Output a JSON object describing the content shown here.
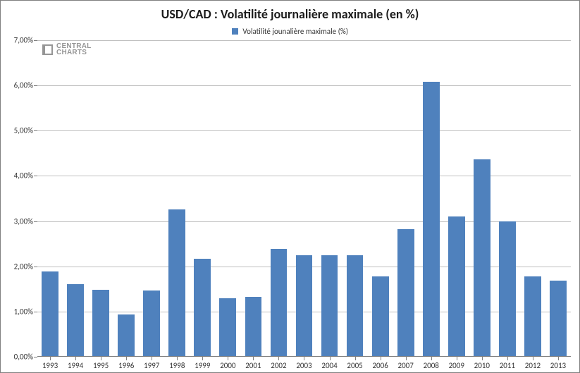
{
  "chart": {
    "type": "bar",
    "title": "USD/CAD : Volatilité journalière maximale (en %)",
    "title_fontsize": 18,
    "title_fontweight": "bold",
    "title_color": "#1a1a1a",
    "legend": {
      "label": "Volatilité jounalière maximale (%)",
      "swatch_color": "#4f81bd",
      "fontsize": 11
    },
    "categories": [
      "1993",
      "1994",
      "1995",
      "1996",
      "1997",
      "1998",
      "1999",
      "2000",
      "2001",
      "2002",
      "2003",
      "2004",
      "2005",
      "2006",
      "2007",
      "2008",
      "2009",
      "2010",
      "2011",
      "2012",
      "2013"
    ],
    "values": [
      1.88,
      1.6,
      1.48,
      0.94,
      1.46,
      3.26,
      2.16,
      1.29,
      1.32,
      2.38,
      2.24,
      2.24,
      2.24,
      1.78,
      2.82,
      6.08,
      3.1,
      4.36,
      3.0,
      1.78,
      1.68
    ],
    "bar_color": "#4f81bd",
    "bar_width": 0.66,
    "ylim": [
      0,
      7
    ],
    "ytick_step": 1,
    "ytick_labels": [
      "0,00%",
      "1,00%",
      "2,00%",
      "3,00%",
      "4,00%",
      "5,00%",
      "6,00%",
      "7,00%"
    ],
    "grid": true,
    "grid_color": "#c0c0c0",
    "axis_color": "#808080",
    "background_color": "#ffffff",
    "tick_label_fontsize": 11,
    "tick_label_color": "#333333"
  },
  "watermark": {
    "line1": "CENTRAL",
    "line2": "CHARTS",
    "color": "#969696"
  }
}
